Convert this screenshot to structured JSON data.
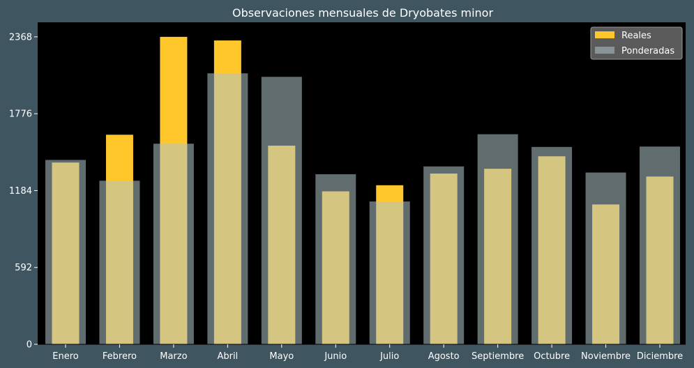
{
  "chart_data": {
    "type": "bar",
    "title": "Observaciones mensuales de Dryobates minor",
    "xlabel": "",
    "ylabel": "",
    "categories": [
      "Enero",
      "Febrero",
      "Marzo",
      "Abril",
      "Mayo",
      "Junio",
      "Julio",
      "Agosto",
      "Septiembre",
      "Octubre",
      "Noviembre",
      "Diciembre"
    ],
    "series": [
      {
        "name": "Reales",
        "color": "#ffc72a",
        "values": [
          1400,
          1614,
          2368,
          2340,
          1530,
          1178,
          1225,
          1315,
          1352,
          1448,
          1077,
          1292
        ]
      },
      {
        "name": "Ponderadas",
        "color": "#b0c4c8",
        "values": [
          1420,
          1260,
          1545,
          2087,
          2060,
          1310,
          1100,
          1370,
          1618,
          1520,
          1323,
          1523
        ]
      }
    ],
    "ylim": [
      0,
      2480
    ],
    "yticks": [
      0,
      592,
      1184,
      1776,
      2368
    ],
    "grid": false,
    "legend_position": "top-right"
  }
}
